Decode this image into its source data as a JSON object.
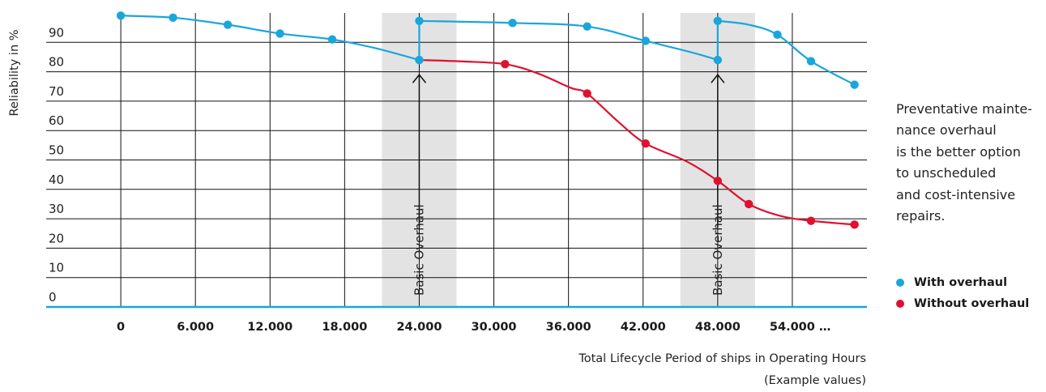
{
  "chart_data": {
    "type": "line",
    "ylabel": "Reliability in %",
    "xlabel_lines": [
      "Total Lifecycle Period of ships in Operating Hours",
      "(Example values)"
    ],
    "x_tick_labels": [
      "0",
      "6.000",
      "12.000",
      "18.000",
      "24.000",
      "30.000",
      "36.000",
      "42.000",
      "48.000",
      "54.000 …"
    ],
    "x_ticks": [
      0,
      6000,
      12000,
      18000,
      24000,
      30000,
      36000,
      42000,
      48000,
      54000
    ],
    "y_ticks": [
      0,
      10,
      20,
      30,
      40,
      50,
      60,
      70,
      80,
      90
    ],
    "xlim": [
      -6000,
      60000
    ],
    "ylim": [
      0,
      100
    ],
    "grid": true,
    "overhaul_label": "Basic Overhaul",
    "overhaul_bands": [
      {
        "from": 21000,
        "to": 27000,
        "at": 24000,
        "arrow_from": 27,
        "arrow_to": 79
      },
      {
        "from": 45000,
        "to": 51000,
        "at": 48000,
        "arrow_from": 27,
        "arrow_to": 79
      }
    ],
    "series": [
      {
        "name": "With overhaul",
        "color": "#1aa6dd",
        "segments": [
          [
            [
              0,
              99.1
            ],
            [
              4200,
              98.4
            ],
            [
              8600,
              96.0
            ],
            [
              12800,
              93.0
            ],
            [
              17000,
              91.0
            ],
            [
              20500,
              88.0
            ],
            [
              24000,
              84.0
            ]
          ],
          [
            [
              24000,
              84.0
            ],
            [
              24000,
              97.3
            ]
          ],
          [
            [
              24000,
              97.3
            ],
            [
              31500,
              96.6
            ],
            [
              37500,
              95.4
            ],
            [
              42200,
              90.5
            ],
            [
              46000,
              86.5
            ],
            [
              48000,
              84.0
            ]
          ],
          [
            [
              48000,
              84.0
            ],
            [
              48000,
              97.3
            ]
          ],
          [
            [
              48000,
              97.3
            ],
            [
              50500,
              96.0
            ],
            [
              52800,
              92.6
            ],
            [
              55500,
              83.6
            ],
            [
              59000,
              75.6
            ]
          ]
        ],
        "points": [
          [
            0,
            99.1
          ],
          [
            4200,
            98.4
          ],
          [
            8600,
            96.0
          ],
          [
            12800,
            93.0
          ],
          [
            17000,
            91.0
          ],
          [
            24000,
            84.0
          ],
          [
            24000,
            97.3
          ],
          [
            31500,
            96.6
          ],
          [
            37500,
            95.4
          ],
          [
            42200,
            90.5
          ],
          [
            48000,
            84.0
          ],
          [
            48000,
            97.3
          ],
          [
            52800,
            92.6
          ],
          [
            55500,
            83.6
          ],
          [
            59000,
            75.6
          ]
        ]
      },
      {
        "name": "Without overhaul",
        "color": "#e0102f",
        "segments": [
          [
            [
              24000,
              84.0
            ],
            [
              27500,
              83.5
            ],
            [
              30900,
              82.6
            ],
            [
              33500,
              79.5
            ],
            [
              36200,
              74.5
            ],
            [
              37500,
              72.6
            ],
            [
              40000,
              63.0
            ],
            [
              42200,
              55.6
            ],
            [
              45500,
              49.5
            ],
            [
              48000,
              42.9
            ],
            [
              50500,
              35.0
            ],
            [
              53000,
              31.0
            ],
            [
              55500,
              29.3
            ],
            [
              59000,
              28.0
            ]
          ]
        ],
        "points": [
          [
            30900,
            82.6
          ],
          [
            37500,
            72.6
          ],
          [
            42200,
            55.6
          ],
          [
            48000,
            42.9
          ],
          [
            50500,
            35.0
          ],
          [
            55500,
            29.3
          ],
          [
            59000,
            28.0
          ]
        ]
      }
    ]
  },
  "side_note_lines": [
    "Preventative mainte-",
    "nance overhaul",
    "is the better option",
    "to unscheduled",
    "and cost-intensive",
    "repairs."
  ],
  "legend": [
    {
      "label": "With overhaul",
      "color": "#1aa6dd"
    },
    {
      "label": "Without overhaul",
      "color": "#e0102f"
    }
  ]
}
